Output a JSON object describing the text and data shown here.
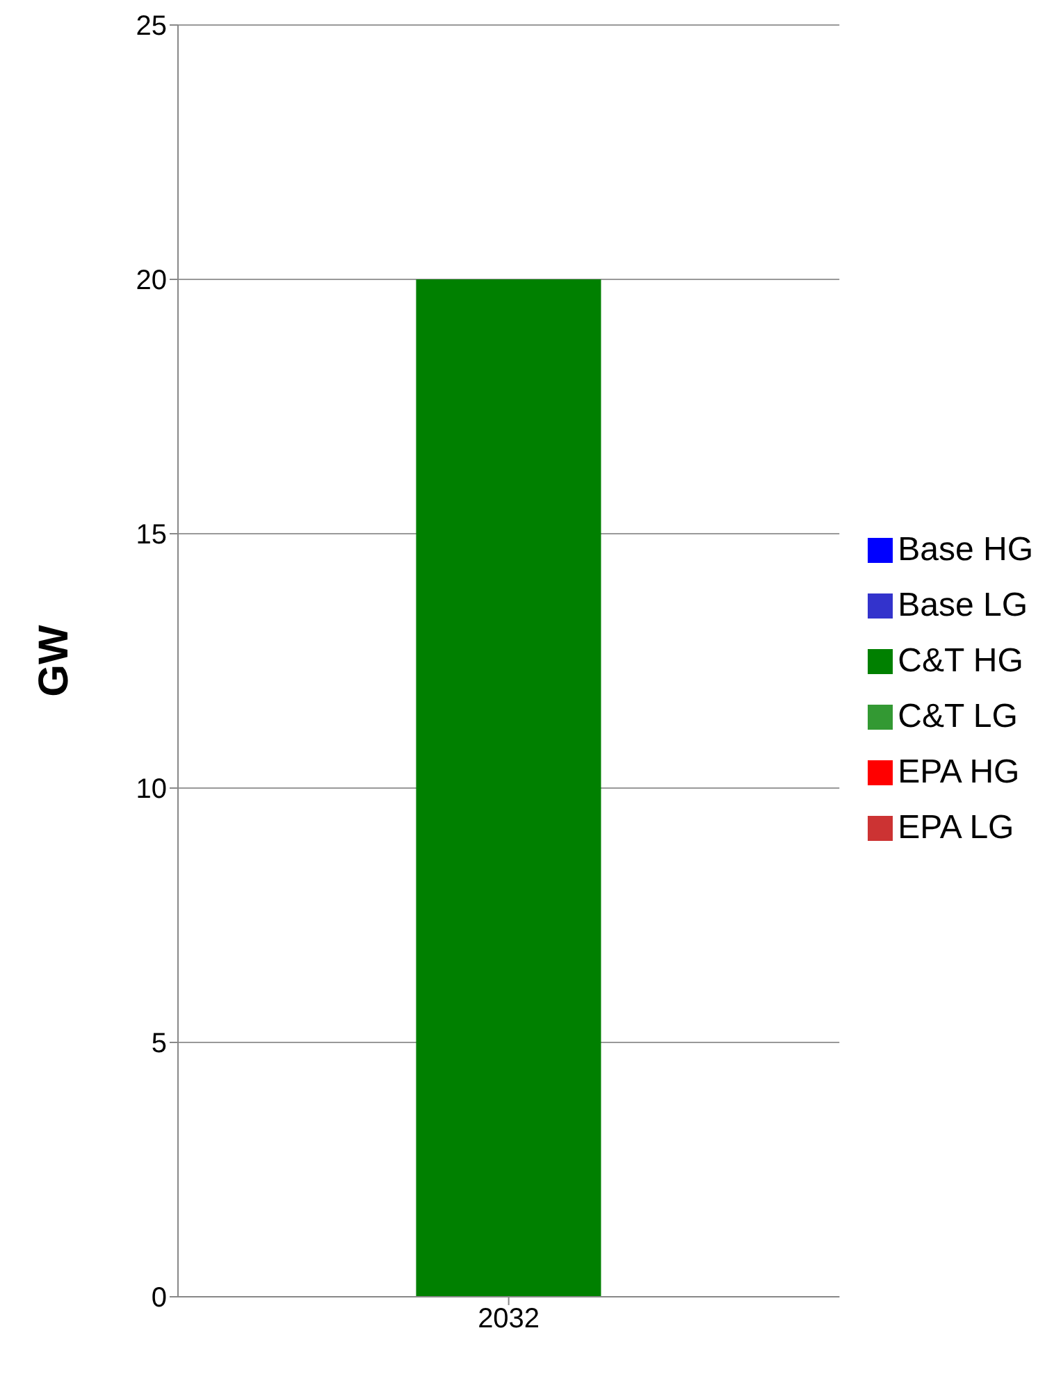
{
  "chart_data": {
    "type": "bar",
    "ylabel": "GW",
    "categories": [
      "2032"
    ],
    "stacked": true,
    "series": [
      {
        "name": "Base HG",
        "color": "#0000ff",
        "values": [
          null
        ]
      },
      {
        "name": "Base LG",
        "color": "#3333cc",
        "values": [
          null
        ]
      },
      {
        "name": "C&T HG",
        "color": "#008000",
        "values": [
          20
        ]
      },
      {
        "name": "C&T LG",
        "color": "#339933",
        "values": [
          null
        ]
      },
      {
        "name": "EPA HG",
        "color": "#ff0000",
        "values": [
          null
        ]
      },
      {
        "name": "EPA LG",
        "color": "#cc3333",
        "values": [
          null
        ]
      }
    ],
    "ylim": [
      0,
      25
    ],
    "yticks": [
      0,
      5,
      10,
      15,
      20,
      25
    ],
    "grid": "y",
    "legend": "right"
  }
}
